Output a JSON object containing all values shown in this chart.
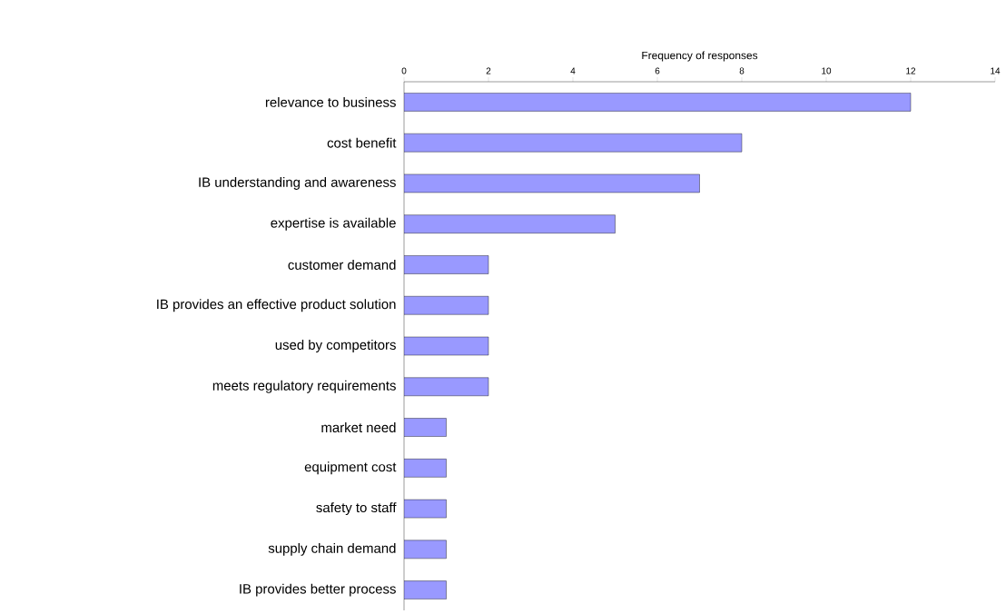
{
  "chart_data": {
    "type": "bar",
    "orientation": "horizontal",
    "xlabel": "Frequency of responses",
    "categories": [
      "relevance to business",
      "cost benefit",
      "IB understanding and awareness",
      "expertise is available",
      "customer demand",
      "IB provides an effective product solution",
      "used by competitors",
      "meets regulatory requirements",
      "market need",
      "equipment cost",
      "safety to staff",
      "supply chain demand",
      "IB provides better process"
    ],
    "values": [
      12,
      8,
      7,
      5,
      2,
      2,
      2,
      2,
      1,
      1,
      1,
      1,
      1
    ],
    "color": "#9999ff",
    "xlim": [
      0,
      14
    ],
    "xticks": [
      0,
      2,
      4,
      6,
      8,
      10,
      12,
      14
    ]
  }
}
